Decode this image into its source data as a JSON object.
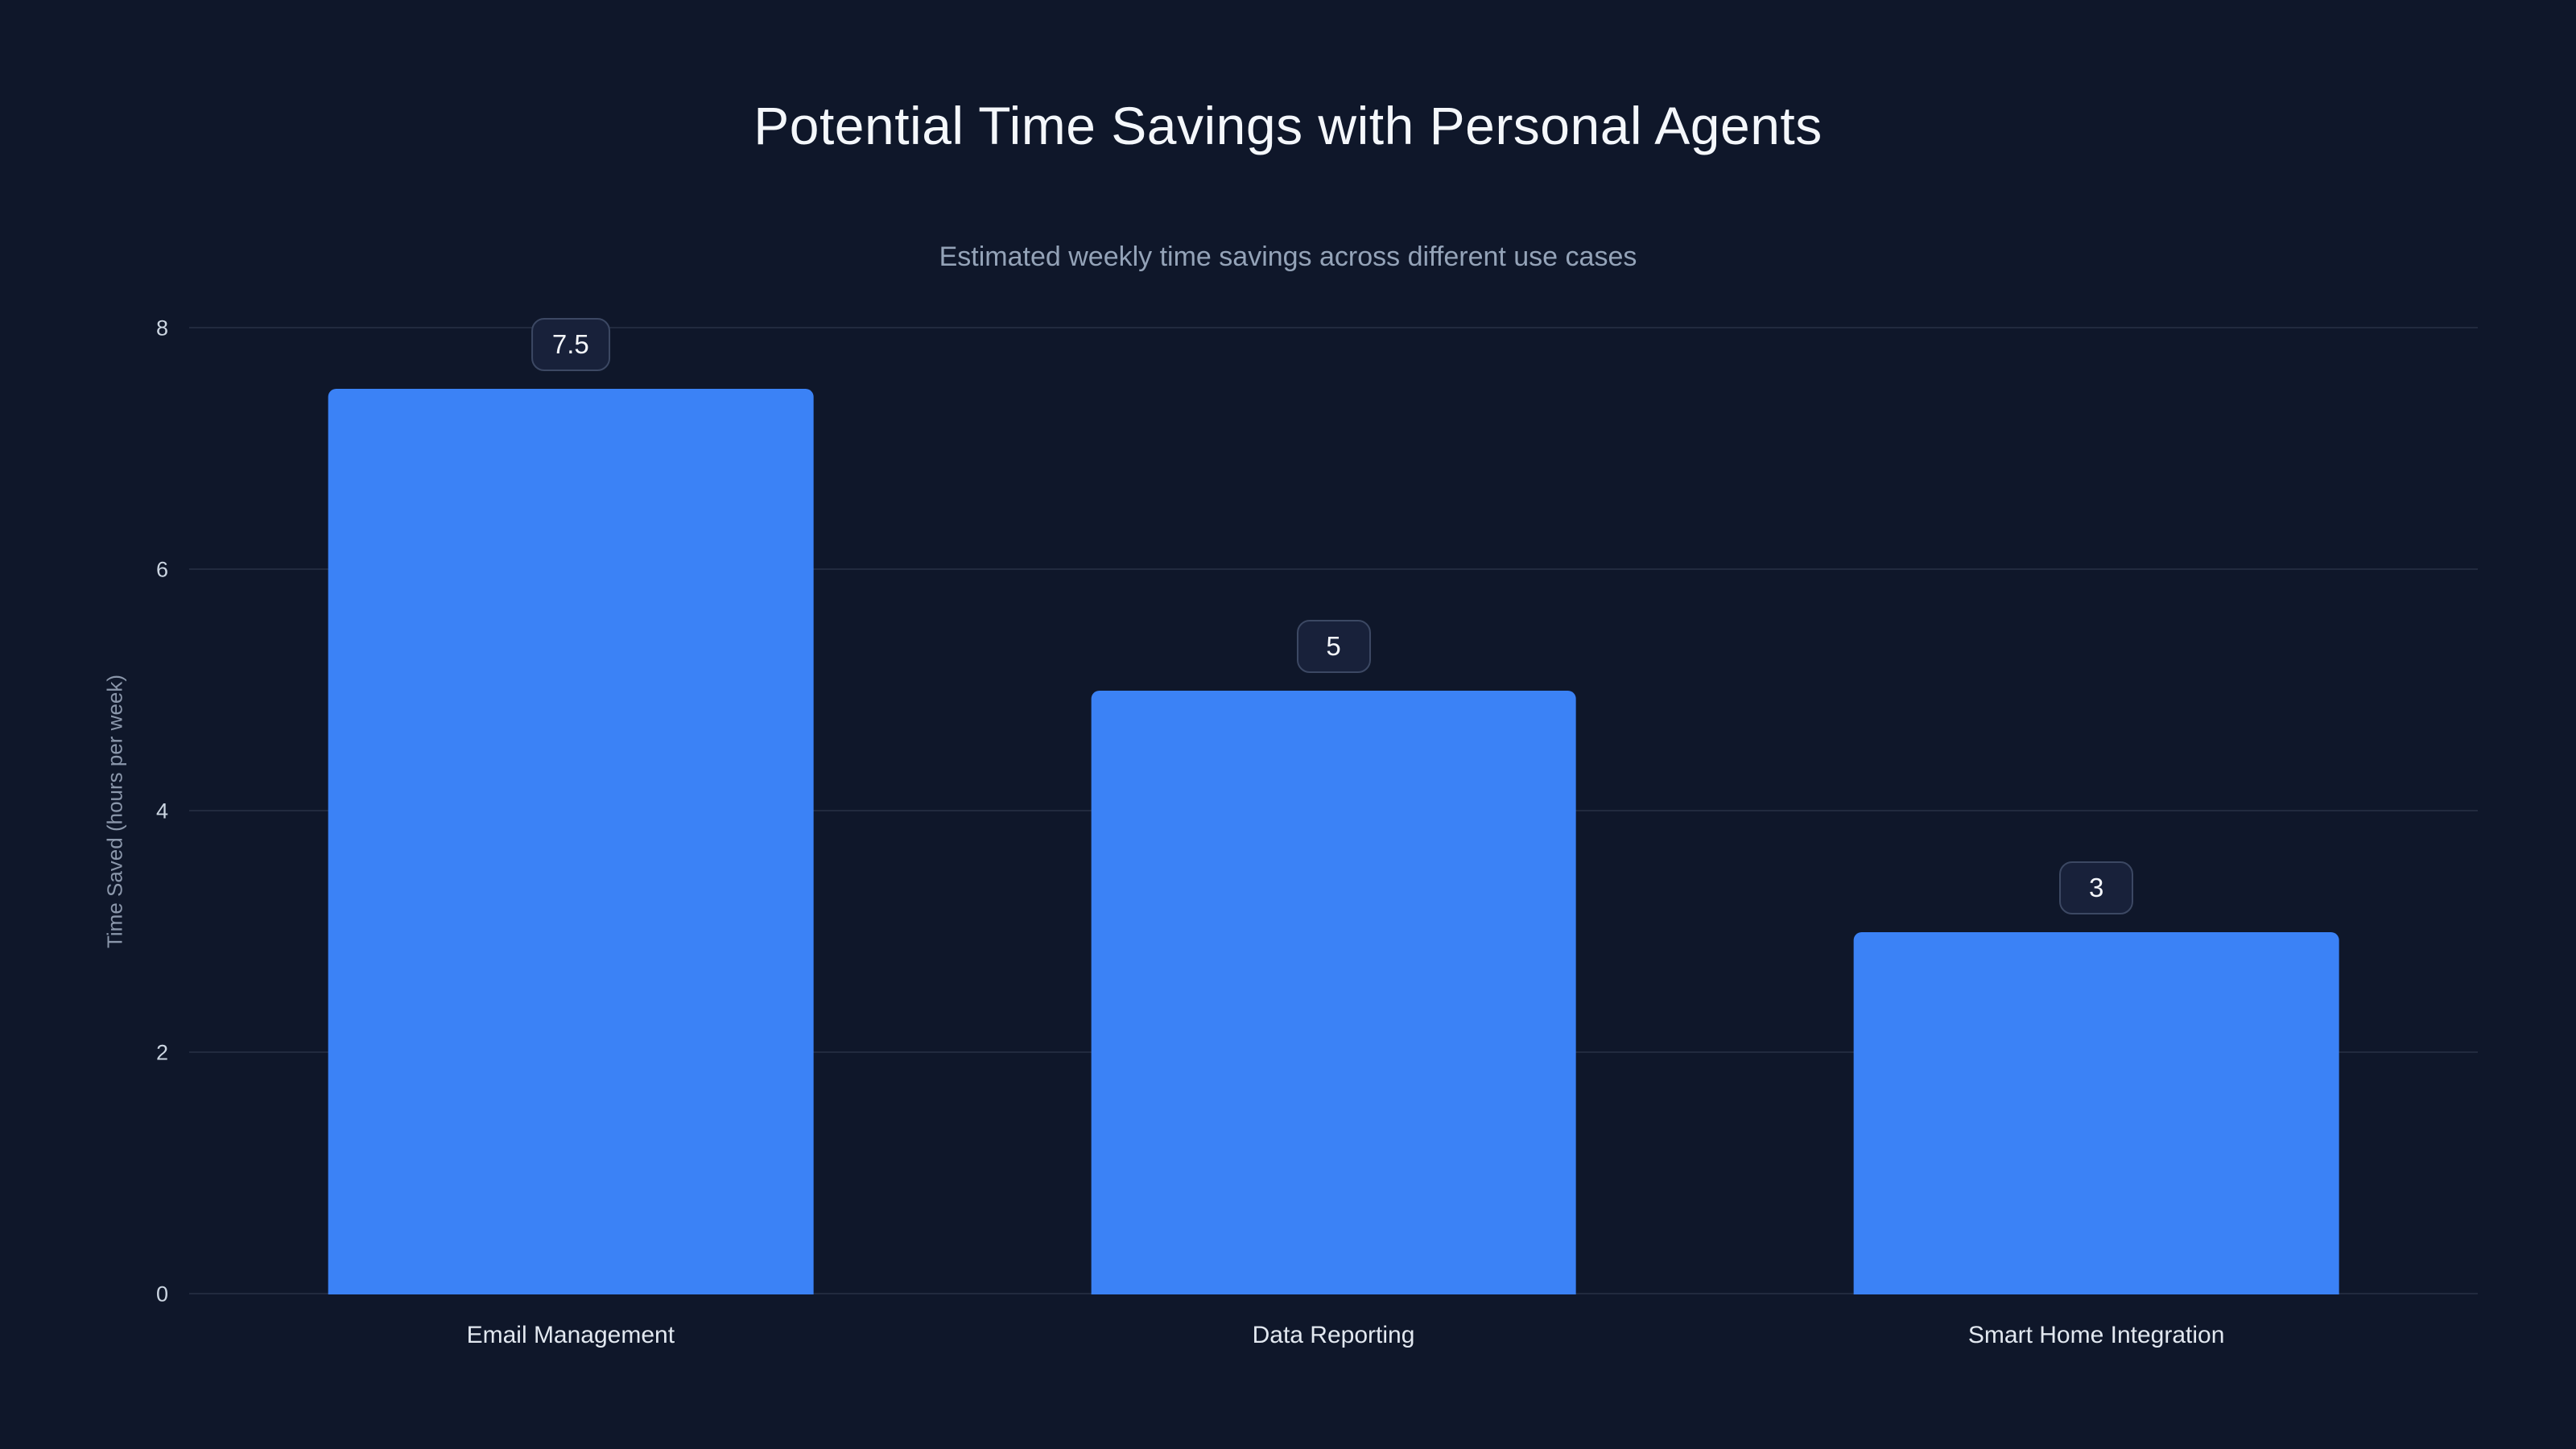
{
  "title": "Potential Time Savings with Personal Agents",
  "subtitle": "Estimated weekly time savings across different use cases",
  "chart_data": {
    "type": "bar",
    "categories": [
      "Email Management",
      "Data Reporting",
      "Smart Home Integration"
    ],
    "values": [
      7.5,
      5,
      3
    ],
    "title": "Potential Time Savings with Personal Agents",
    "subtitle": "Estimated weekly time savings across different use cases",
    "xlabel": "",
    "ylabel": "Time Saved (hours per week)",
    "ylim": [
      0,
      8
    ],
    "yticks": [
      0,
      2,
      4,
      6,
      8
    ],
    "grid": "horizontal",
    "legend": "none",
    "data_labels_shown": true
  },
  "colors": {
    "background": "#0f172a",
    "bar": "#3b82f6",
    "grid": "#26324d",
    "title_text": "#f4f7fb",
    "subtitle_text": "#94a3b8",
    "axis_text": "#cbd5e1"
  }
}
